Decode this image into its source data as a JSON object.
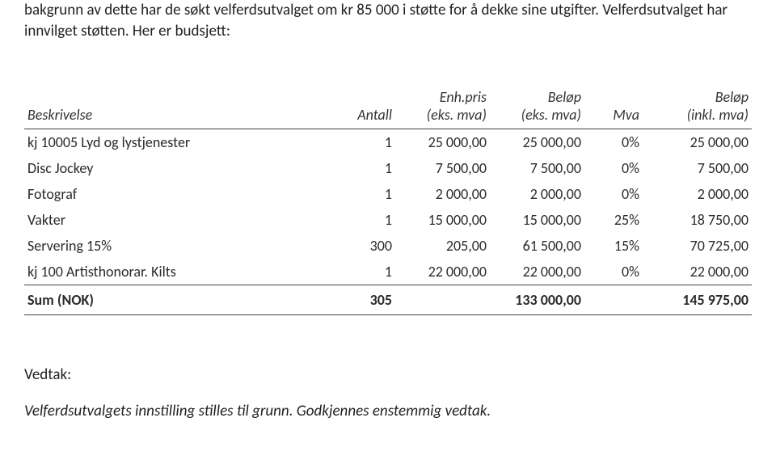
{
  "intro": "bakgrunn av dette har de søkt velferdsutvalget om kr 85 000 i støtte for å dekke sine utgifter. Velferdsutvalget har innvilget støtten. Her er budsjett:",
  "table": {
    "columns": {
      "desc": "Beskrivelse",
      "antall": "Antall",
      "enhpris_l1": "Enh.pris",
      "enhpris_l2": "(eks. mva)",
      "belop_l1": "Beløp",
      "belop_l2": "(eks. mva)",
      "mva": "Mva",
      "belopink_l1": "Beløp",
      "belopink_l2": "(inkl. mva)"
    },
    "rows": [
      {
        "desc": "kj 10005 Lyd og lystjenester",
        "antall": "1",
        "enh": "25 000,00",
        "bel": "25 000,00",
        "mva": "0%",
        "bink": "25 000,00"
      },
      {
        "desc": "Disc Jockey",
        "antall": "1",
        "enh": "7 500,00",
        "bel": "7 500,00",
        "mva": "0%",
        "bink": "7 500,00"
      },
      {
        "desc": "Fotograf",
        "antall": "1",
        "enh": "2 000,00",
        "bel": "2 000,00",
        "mva": "0%",
        "bink": "2 000,00"
      },
      {
        "desc": "Vakter",
        "antall": "1",
        "enh": "15 000,00",
        "bel": "15 000,00",
        "mva": "25%",
        "bink": "18 750,00"
      },
      {
        "desc": "Servering 15%",
        "antall": "300",
        "enh": "205,00",
        "bel": "61 500,00",
        "mva": "15%",
        "bink": "70 725,00"
      },
      {
        "desc": "kj 100 Artisthonorar. Kilts",
        "antall": "1",
        "enh": "22 000,00",
        "bel": "22 000,00",
        "mva": "0%",
        "bink": "22 000,00"
      }
    ],
    "sum": {
      "label": "Sum (NOK)",
      "antall": "305",
      "bel": "133 000,00",
      "bink": "145 975,00"
    }
  },
  "vedtak": {
    "label": "Vedtak:",
    "text": "Velferdsutvalgets innstilling stilles til grunn. Godkjennes enstemmig vedtak."
  }
}
